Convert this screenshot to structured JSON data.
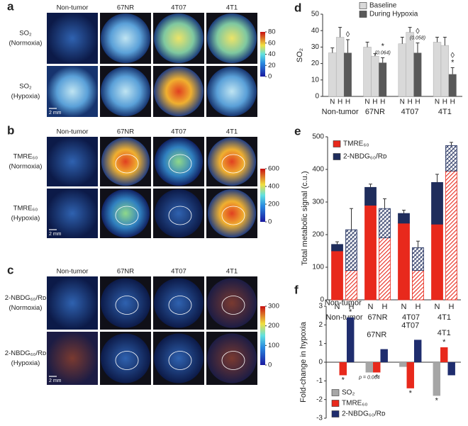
{
  "image_panels": [
    {
      "panel": "a",
      "columns": [
        "Non-tumor",
        "67NR",
        "4T07",
        "4T1"
      ],
      "rows": [
        [
          "SO₂",
          "(Normoxia)"
        ],
        [
          "SO₂",
          "(Hypoxia)"
        ]
      ],
      "colorbar_lim": [
        0,
        80
      ],
      "colorbar_ticks": [
        0,
        20,
        40,
        60,
        80
      ],
      "scale_bar": "2 mm"
    },
    {
      "panel": "b",
      "columns": [
        "Non-tumor",
        "67NR",
        "4T07",
        "4T1"
      ],
      "rows": [
        [
          "TMRE₆₀",
          "(Normoxia)"
        ],
        [
          "TMRE₆₀",
          "(Hypoxia)"
        ]
      ],
      "colorbar_lim": [
        0,
        600
      ],
      "colorbar_ticks": [
        0,
        200,
        400,
        600
      ],
      "scale_bar": "2 mm"
    },
    {
      "panel": "c",
      "columns": [
        "Non-tumor",
        "67NR",
        "4T07",
        "4T1"
      ],
      "rows": [
        [
          "2-NBDG₆₀/Rᴅ",
          "(Normoxia)"
        ],
        [
          "2-NBDG₆₀/Rᴅ",
          "(Hypoxia)"
        ]
      ],
      "colorbar_lim": [
        0,
        300
      ],
      "colorbar_ticks": [
        0,
        100,
        200,
        300
      ],
      "scale_bar": "2 mm"
    }
  ],
  "chart_data": [
    {
      "type": "bar",
      "panel": "d",
      "ylabel": "SO₂",
      "legend": "top",
      "category_labels": "below",
      "categories": [
        "Non-tumor",
        "67NR",
        "4T07",
        "4T1"
      ],
      "series": [
        {
          "name": "Baseline",
          "tick_label": "N",
          "color": "#d9d9d9",
          "values": [
            26.5,
            30,
            32,
            33
          ],
          "errors": [
            3,
            3,
            4,
            3
          ]
        },
        {
          "tick_label": "H",
          "color": "#d9d9d9",
          "values": [
            36,
            24.5,
            39,
            31
          ],
          "errors": [
            6,
            1.5,
            3,
            5
          ]
        },
        {
          "name": "During Hypoxia",
          "tick_label": "H",
          "color": "#595959",
          "values": [
            26.5,
            20.5,
            26.5,
            13.5
          ],
          "errors": [
            8,
            3,
            6,
            4
          ],
          "notes": [
            [
              "◊"
            ],
            [
              "(0.064)",
              "*"
            ],
            [
              "(0.058)",
              "◊"
            ],
            [
              "*",
              "◊"
            ]
          ]
        }
      ],
      "ylim": [
        0,
        50
      ],
      "yticks": [
        0,
        10,
        20,
        30,
        40,
        50
      ]
    },
    {
      "type": "stacked_bar",
      "panel": "e",
      "ylabel": "Total metabolic signal (c.u.)",
      "legend": "top-left",
      "groups": [
        "Non-tumor",
        "67NR",
        "4T07",
        "4T1"
      ],
      "categories": [
        "N",
        "H",
        "N",
        "H",
        "N",
        "H",
        "N",
        "H"
      ],
      "hatched": [
        false,
        true,
        false,
        true,
        false,
        true,
        false,
        true
      ],
      "series": [
        {
          "name": "TMRE₆₀",
          "color": "#e8291c",
          "values": [
            150,
            90,
            290,
            190,
            235,
            90,
            232,
            395
          ],
          "errors": [
            10,
            5,
            20,
            10,
            10,
            5,
            5,
            30
          ]
        },
        {
          "name": "2-NBDG₆₀/Rᴅ",
          "color": "#1f2d5c",
          "values": [
            20,
            125,
            55,
            90,
            30,
            70,
            128,
            78
          ],
          "errors": [
            8,
            65,
            10,
            30,
            10,
            20,
            25,
            10
          ]
        }
      ],
      "ylim": [
        0,
        500
      ],
      "yticks": [
        0,
        100,
        200,
        300,
        400,
        500
      ]
    },
    {
      "type": "bar",
      "panel": "f",
      "ylabel": "Fold-change in hypoxia",
      "legend": "bottom-left",
      "category_labels": "inside",
      "categories": [
        "Non-tumor",
        "67NR",
        "4T07",
        "4T1"
      ],
      "series": [
        {
          "name": "SO₂",
          "color": "#a6a6a6",
          "values": [
            0,
            -0.55,
            -0.25,
            -1.8
          ],
          "notes": [
            null,
            [
              "p = 0.064"
            ],
            null,
            [
              "*"
            ]
          ]
        },
        {
          "name": "TMRE₆₀",
          "color": "#e8291c",
          "values": [
            -0.7,
            -0.55,
            -1.4,
            0.8
          ],
          "notes": [
            [
              "*"
            ],
            [
              "*"
            ],
            [
              "*"
            ],
            [
              "*"
            ]
          ]
        },
        {
          "name": "2-NBDG₆₀/Rᴅ",
          "color": "#1f2d6e",
          "values": [
            2.4,
            0.7,
            1.2,
            -0.7
          ],
          "notes": [
            [
              "*"
            ],
            null,
            null,
            null
          ]
        }
      ],
      "ylim": [
        -3,
        3
      ],
      "yticks": [
        -3,
        -2,
        -1,
        0,
        1,
        2,
        3
      ]
    }
  ]
}
